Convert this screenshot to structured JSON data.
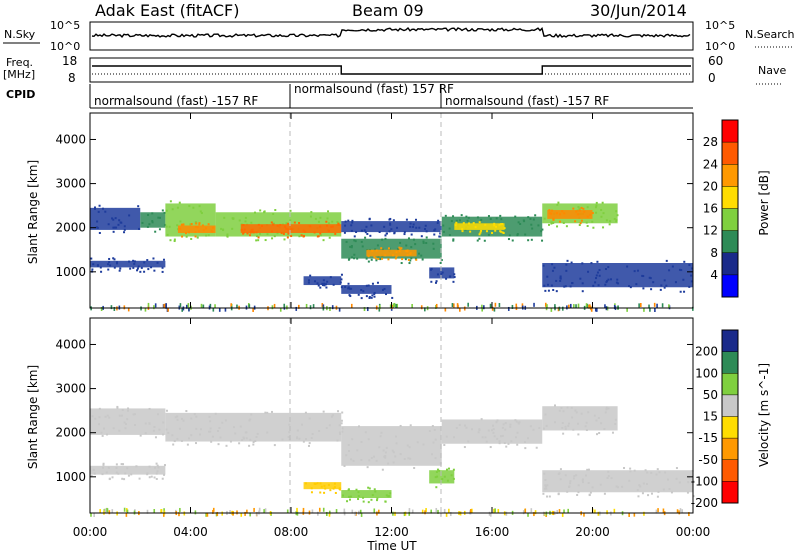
{
  "header": {
    "station": "Adak East (fitACF)",
    "beam": "Beam 09",
    "date": "30/Jun/2014"
  },
  "nsky_panel": {
    "left_label": "N.Sky",
    "left_ticks": [
      "10^5",
      "10^0"
    ],
    "right_ticks": [
      "10^5",
      "10^0"
    ],
    "right_label": "N.Search"
  },
  "freq_panel": {
    "left_label_1": "Freq.",
    "left_label_2": "[MHz]",
    "left_ticks": [
      "18",
      "8"
    ],
    "right_ticks": [
      "60",
      "0"
    ],
    "right_label": "Nave"
  },
  "cpid_panel": {
    "label": "CPID",
    "segments": [
      {
        "start_h": 0,
        "end_h": 8,
        "text": "normalsound (fast) -157 RF"
      },
      {
        "start_h": 8,
        "end_h": 14,
        "text": "normalsound (fast) 157 RF"
      },
      {
        "start_h": 14,
        "end_h": 24,
        "text": "normalsound (fast) -157 RF"
      }
    ]
  },
  "x_axis": {
    "label": "Time UT",
    "ticks": [
      "00:00",
      "04:00",
      "08:00",
      "12:00",
      "16:00",
      "20:00",
      "00:00"
    ],
    "range_hours": [
      0,
      24
    ]
  },
  "chart_data": [
    {
      "type": "heatmap",
      "name": "power",
      "ylabel": "Slant Range [km]",
      "y_ticks": [
        "1000",
        "2000",
        "3000",
        "4000"
      ],
      "ylim": [
        180,
        4600
      ],
      "colorbar_label": "Power [dB]",
      "colorbar_ticks": [
        "28",
        "24",
        "20",
        "16",
        "12",
        "8",
        "4"
      ],
      "colorbar_colors": [
        "#ff0000",
        "#ff5a00",
        "#ff9900",
        "#ffdd00",
        "#7fcf3f",
        "#2e8b57",
        "#1a2a8a",
        "#0000ff"
      ],
      "bands": [
        {
          "t0": 0.0,
          "t1": 2.0,
          "r0": 1950,
          "r1": 2450,
          "color": "#1e3c9c"
        },
        {
          "t0": 2.0,
          "t1": 3.0,
          "r0": 2000,
          "r1": 2350,
          "color": "#2e8b57"
        },
        {
          "t0": 3.0,
          "t1": 5.0,
          "r0": 1800,
          "r1": 2550,
          "color": "#7fcf3f"
        },
        {
          "t0": 3.5,
          "t1": 5.0,
          "r0": 1880,
          "r1": 2050,
          "color": "#ff8800"
        },
        {
          "t0": 5.0,
          "t1": 10.0,
          "r0": 1800,
          "r1": 2350,
          "color": "#7fcf3f"
        },
        {
          "t0": 6.0,
          "t1": 10.0,
          "r0": 1880,
          "r1": 2080,
          "color": "#ff6a00"
        },
        {
          "t0": 0.0,
          "t1": 3.0,
          "r0": 1100,
          "r1": 1250,
          "color": "#1e3c9c"
        },
        {
          "t0": 10.0,
          "t1": 14.0,
          "r0": 1300,
          "r1": 1750,
          "color": "#2e8b57"
        },
        {
          "t0": 11.0,
          "t1": 13.0,
          "r0": 1350,
          "r1": 1500,
          "color": "#ff9900"
        },
        {
          "t0": 10.0,
          "t1": 14.0,
          "r0": 1900,
          "r1": 2150,
          "color": "#1e3c9c"
        },
        {
          "t0": 14.0,
          "t1": 18.0,
          "r0": 1800,
          "r1": 2250,
          "color": "#2e8b57"
        },
        {
          "t0": 14.5,
          "t1": 16.5,
          "r0": 1950,
          "r1": 2100,
          "color": "#ffdd00"
        },
        {
          "t0": 18.0,
          "t1": 21.0,
          "r0": 2100,
          "r1": 2550,
          "color": "#7fcf3f"
        },
        {
          "t0": 18.2,
          "t1": 20.0,
          "r0": 2200,
          "r1": 2400,
          "color": "#ff8800"
        },
        {
          "t0": 18.0,
          "t1": 24.0,
          "r0": 650,
          "r1": 1200,
          "color": "#1e3c9c"
        },
        {
          "t0": 8.5,
          "t1": 10.0,
          "r0": 700,
          "r1": 900,
          "color": "#1e3c9c"
        },
        {
          "t0": 10.0,
          "t1": 12.0,
          "r0": 500,
          "r1": 700,
          "color": "#1e3c9c"
        },
        {
          "t0": 13.5,
          "t1": 14.5,
          "r0": 850,
          "r1": 1100,
          "color": "#1e3c9c"
        }
      ]
    },
    {
      "type": "heatmap",
      "name": "velocity",
      "ylabel": "Slant Range [km]",
      "y_ticks": [
        "1000",
        "2000",
        "3000",
        "4000"
      ],
      "ylim": [
        180,
        4600
      ],
      "colorbar_label": "Velocity [m s^-1]",
      "colorbar_ticks": [
        "200",
        "100",
        "50",
        "15",
        "-15",
        "-50",
        "-100",
        "-200"
      ],
      "colorbar_colors": [
        "#1a2a8a",
        "#2e8b57",
        "#7fcf3f",
        "#c8c8c8",
        "#ffdd00",
        "#ff9900",
        "#ff5a00",
        "#ff0000"
      ],
      "bands": [
        {
          "t0": 0.0,
          "t1": 3.0,
          "r0": 1950,
          "r1": 2550,
          "color": "#c8c8c8"
        },
        {
          "t0": 3.0,
          "t1": 10.0,
          "r0": 1800,
          "r1": 2450,
          "color": "#c8c8c8"
        },
        {
          "t0": 0.0,
          "t1": 3.0,
          "r0": 1050,
          "r1": 1250,
          "color": "#c8c8c8"
        },
        {
          "t0": 10.0,
          "t1": 14.0,
          "r0": 1250,
          "r1": 2150,
          "color": "#c8c8c8"
        },
        {
          "t0": 14.0,
          "t1": 18.0,
          "r0": 1750,
          "r1": 2300,
          "color": "#c8c8c8"
        },
        {
          "t0": 18.0,
          "t1": 21.0,
          "r0": 2050,
          "r1": 2600,
          "color": "#c8c8c8"
        },
        {
          "t0": 18.0,
          "t1": 24.0,
          "r0": 650,
          "r1": 1150,
          "color": "#c8c8c8"
        },
        {
          "t0": 10.0,
          "t1": 12.0,
          "r0": 520,
          "r1": 700,
          "color": "#7fcf3f"
        },
        {
          "t0": 13.5,
          "t1": 14.5,
          "r0": 850,
          "r1": 1150,
          "color": "#7fcf3f"
        },
        {
          "t0": 8.5,
          "t1": 10.0,
          "r0": 720,
          "r1": 880,
          "color": "#ffcc00"
        }
      ]
    }
  ]
}
